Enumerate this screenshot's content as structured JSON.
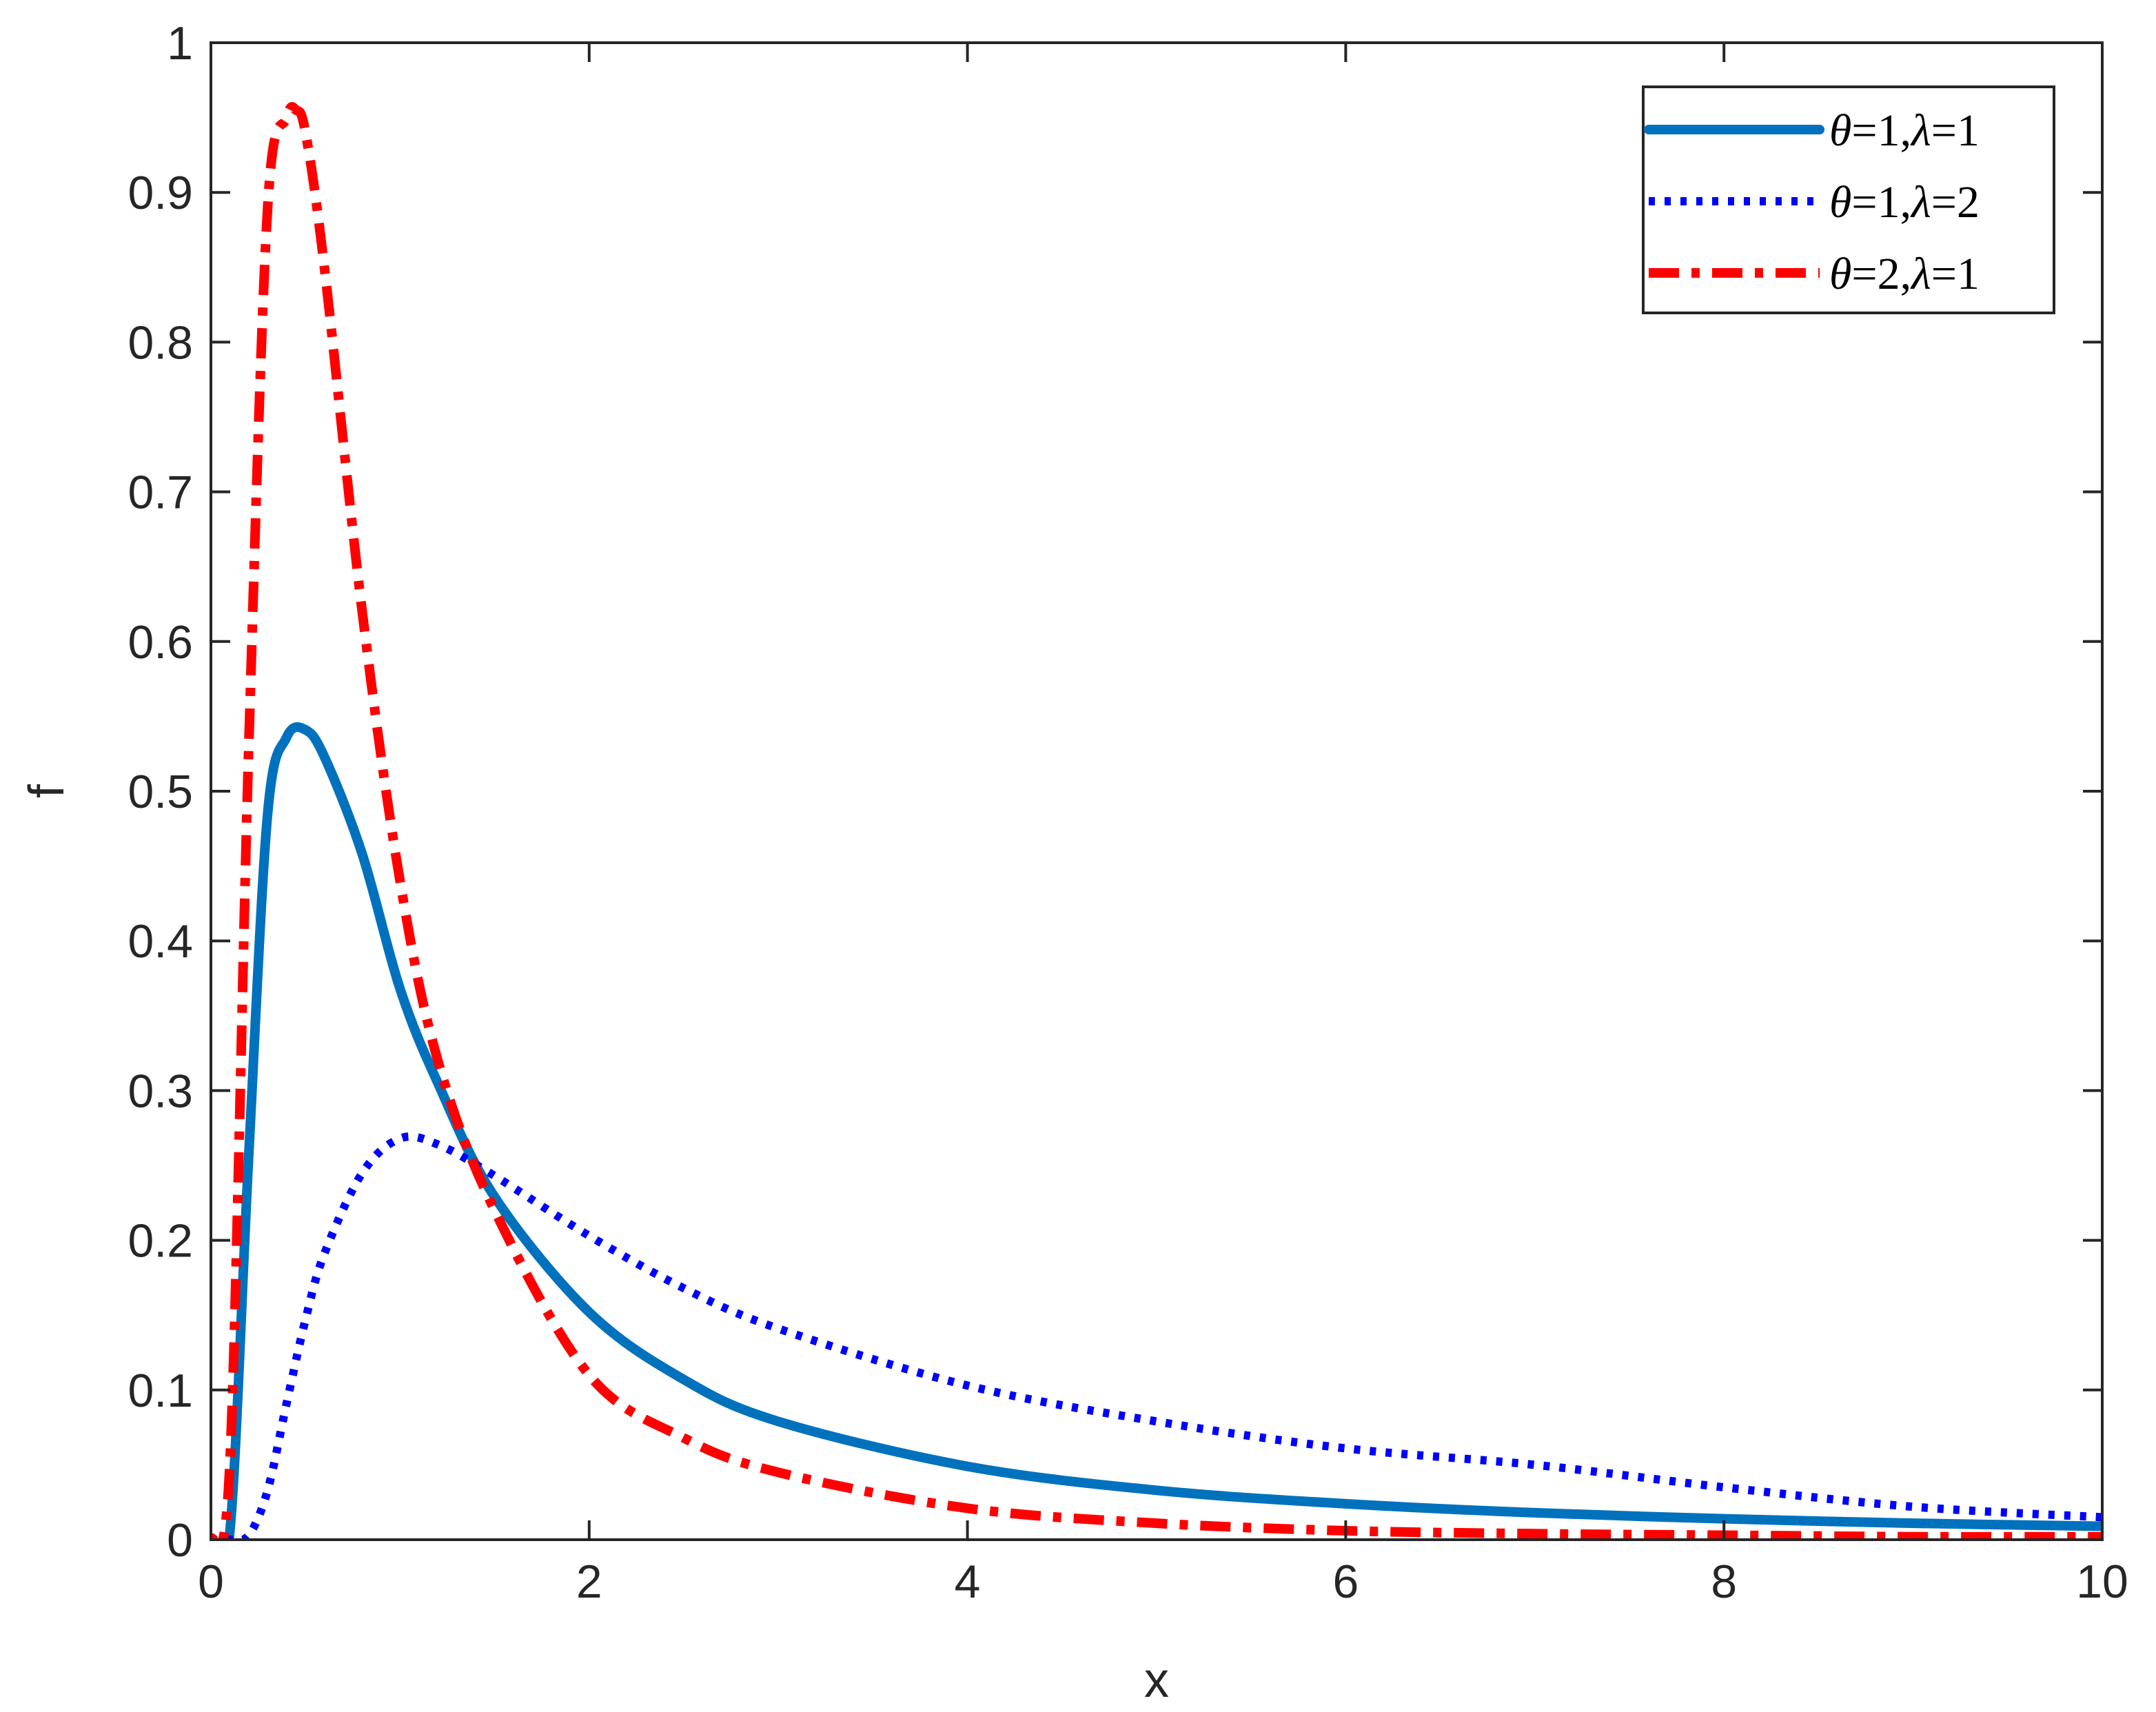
{
  "chart_data": {
    "type": "line",
    "xlabel": "x",
    "ylabel": "f",
    "xlim": [
      0,
      10
    ],
    "ylim": [
      0,
      1
    ],
    "xticks": [
      0,
      2,
      4,
      6,
      8,
      10
    ],
    "xtick_labels": [
      "0",
      "2",
      "4",
      "6",
      "8",
      "10"
    ],
    "yticks": [
      0,
      0.1,
      0.2,
      0.3,
      0.4,
      0.5,
      0.6,
      0.7,
      0.8,
      0.9,
      1
    ],
    "ytick_labels": [
      "0",
      "0.1",
      "0.2",
      "0.3",
      "0.4",
      "0.5",
      "0.6",
      "0.7",
      "0.8",
      "0.9",
      "1"
    ],
    "grid": false,
    "legend_position": "top-right",
    "series": [
      {
        "name": "θ=1,λ=1",
        "theta": "1",
        "lambda": "1",
        "color": "#0072BD",
        "style": "solid",
        "x": [
          0,
          0.1,
          0.2,
          0.3,
          0.4,
          0.5,
          0.6,
          0.8,
          1,
          1.2,
          1.5,
          2,
          2.5,
          3,
          4,
          5,
          6,
          7,
          8,
          9,
          10
        ],
        "y": [
          0,
          0.005,
          0.257,
          0.485,
          0.536,
          0.541,
          0.523,
          0.458,
          0.368,
          0.305,
          0.229,
          0.152,
          0.107,
          0.079,
          0.049,
          0.033,
          0.024,
          0.018,
          0.014,
          0.011,
          0.009
        ]
      },
      {
        "name": "θ=1,λ=2",
        "theta": "1",
        "lambda": "2",
        "color": "#0000FF",
        "style": "dotted",
        "x": [
          0,
          0.1,
          0.2,
          0.3,
          0.4,
          0.5,
          0.6,
          0.8,
          1,
          1.2,
          1.5,
          2,
          2.5,
          3,
          4,
          5,
          6,
          7,
          8,
          9,
          10
        ],
        "y": [
          0,
          0,
          0.003,
          0.033,
          0.091,
          0.147,
          0.191,
          0.245,
          0.268,
          0.264,
          0.243,
          0.203,
          0.168,
          0.141,
          0.103,
          0.079,
          0.061,
          0.05,
          0.035,
          0.022,
          0.015
        ]
      },
      {
        "name": "θ=2,λ=1",
        "theta": "2",
        "lambda": "1",
        "color": "#FF0000",
        "style": "dash-dot",
        "x": [
          0,
          0.1,
          0.2,
          0.3,
          0.4,
          0.45,
          0.5,
          0.6,
          0.8,
          1,
          1.2,
          1.5,
          2,
          2.5,
          3,
          4,
          5,
          6,
          7,
          8,
          9,
          10
        ],
        "y": [
          0,
          0.05,
          0.53,
          0.89,
          0.95,
          0.955,
          0.94,
          0.85,
          0.62,
          0.44,
          0.32,
          0.22,
          0.11,
          0.068,
          0.045,
          0.021,
          0.011,
          0.006,
          0.004,
          0.003,
          0.002,
          0.002
        ]
      }
    ]
  }
}
